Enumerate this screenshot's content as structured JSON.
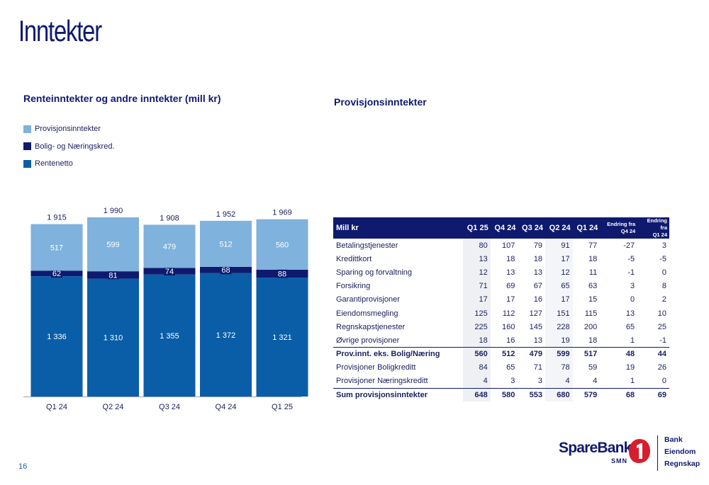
{
  "page": {
    "title": "Inntekter",
    "page_number": "16"
  },
  "chart_data": {
    "type": "bar",
    "stacked": true,
    "title": "Renteinntekter og andre inntekter (mill kr)",
    "categories": [
      "Q1 24",
      "Q2 24",
      "Q3 24",
      "Q4 24",
      "Q1 25"
    ],
    "category_labels": [
      "Q1 24",
      "Q2 24",
      "Q3 24",
      "Q4 24",
      "Q1 25"
    ],
    "totals": [
      1915,
      1990,
      1908,
      1952,
      1969
    ],
    "total_labels": [
      "1 915",
      "1 990",
      "1 908",
      "1 952",
      "1 969"
    ],
    "legend": [
      "Provisjonsinntekter",
      "Bolig- og Næringskred.",
      "Rentenetto"
    ],
    "legend_colors": [
      "#7fb2dc",
      "#0f1a6e",
      "#0a5ea8"
    ],
    "series": [
      {
        "name": "Rentenetto",
        "color": "#0a5ea8",
        "values": [
          1336,
          1310,
          1355,
          1372,
          1321
        ],
        "labels": [
          "1 336",
          "1 310",
          "1 355",
          "1 372",
          "1 321"
        ]
      },
      {
        "name": "Bolig- og Næringskred.",
        "color": "#0f1a6e",
        "values": [
          62,
          81,
          74,
          68,
          88
        ],
        "labels": [
          "62",
          "81",
          "74",
          "68",
          "88"
        ]
      },
      {
        "name": "Provisjonsinntekter",
        "color": "#7fb2dc",
        "values": [
          517,
          599,
          479,
          512,
          560
        ],
        "labels": [
          "517",
          "599",
          "479",
          "512",
          "560"
        ]
      }
    ],
    "ylim": [
      0,
      1990
    ]
  },
  "table": {
    "title": "Provisjonsinntekter",
    "headers": [
      "Mill kr",
      "Q1 25",
      "Q4 24",
      "Q3 24",
      "Q2 24",
      "Q1 24"
    ],
    "change_headers": [
      {
        "line1": "Endring fra",
        "line2": "Q4 24"
      },
      {
        "line1": "Endring fra",
        "line2": "Q1 24"
      }
    ],
    "rows": [
      {
        "label": "Betalingstjenester",
        "values": [
          "80",
          "107",
          "79",
          "91",
          "77",
          "-27",
          "3"
        ],
        "style": ""
      },
      {
        "label": "Kredittkort",
        "values": [
          "13",
          "18",
          "18",
          "17",
          "18",
          "-5",
          "-5"
        ],
        "style": ""
      },
      {
        "label": "Sparing og forvaltning",
        "values": [
          "12",
          "13",
          "13",
          "12",
          "11",
          "-1",
          "0"
        ],
        "style": ""
      },
      {
        "label": "Forsikring",
        "values": [
          "71",
          "69",
          "67",
          "65",
          "63",
          "3",
          "8"
        ],
        "style": ""
      },
      {
        "label": "Garantiprovisjoner",
        "values": [
          "17",
          "17",
          "16",
          "17",
          "15",
          "0",
          "2"
        ],
        "style": ""
      },
      {
        "label": "Eiendomsmegling",
        "values": [
          "125",
          "112",
          "127",
          "151",
          "115",
          "13",
          "10"
        ],
        "style": ""
      },
      {
        "label": "Regnskapstjenester",
        "values": [
          "225",
          "160",
          "145",
          "228",
          "200",
          "65",
          "25"
        ],
        "style": ""
      },
      {
        "label": "Øvrige provisjoner",
        "values": [
          "18",
          "16",
          "13",
          "19",
          "18",
          "1",
          "-1"
        ],
        "style": ""
      },
      {
        "label": "Prov.innt. eks. Bolig/Næring",
        "values": [
          "560",
          "512",
          "479",
          "599",
          "517",
          "48",
          "44"
        ],
        "style": "bold"
      },
      {
        "label": "Provisjoner Boligkreditt",
        "values": [
          "84",
          "65",
          "71",
          "78",
          "59",
          "19",
          "26"
        ],
        "style": ""
      },
      {
        "label": "Provisjoner Næringskreditt",
        "values": [
          "4",
          "3",
          "3",
          "4",
          "4",
          "1",
          "0"
        ],
        "style": ""
      },
      {
        "label": "Sum provisjonsinntekter",
        "values": [
          "648",
          "580",
          "553",
          "680",
          "579",
          "68",
          "69"
        ],
        "style": "sum"
      }
    ]
  },
  "logo": {
    "brand": "SpareBank",
    "sub": "SMN",
    "number": "1",
    "lines": [
      "Bank",
      "Eiendom",
      "Regnskap"
    ],
    "brand_color": "#0f1a6e",
    "accent_color": "#d81e2c"
  }
}
